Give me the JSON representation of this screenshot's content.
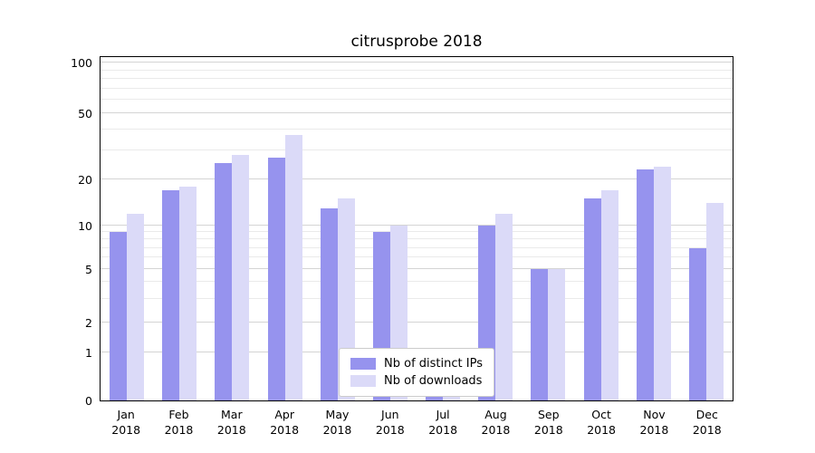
{
  "title": "citrusprobe 2018",
  "chart_data": {
    "type": "bar",
    "title": "citrusprobe 2018",
    "scale": "symlog",
    "categories": [
      "Jan",
      "Feb",
      "Mar",
      "Apr",
      "May",
      "Jun",
      "Jul",
      "Aug",
      "Sep",
      "Oct",
      "Nov",
      "Dec"
    ],
    "year_label": "2018",
    "series": [
      {
        "name": "Nb of distinct IPs",
        "color": "#9693ee",
        "values": [
          9,
          17,
          25,
          27,
          13,
          9,
          1,
          10,
          5,
          15,
          23,
          7
        ]
      },
      {
        "name": "Nb of downloads",
        "color": "#dbdaf8",
        "values": [
          12,
          18,
          28,
          37,
          15,
          10,
          1,
          12,
          5,
          17,
          24,
          14
        ]
      }
    ],
    "yticks": [
      0,
      1,
      2,
      5,
      10,
      20,
      50,
      100
    ],
    "minor_yticks": [
      3,
      4,
      6,
      7,
      8,
      9,
      30,
      40,
      60,
      70,
      80,
      90
    ],
    "ylim": [
      0,
      110
    ],
    "grid": true,
    "legend_position": "lower center"
  },
  "colors": {
    "major_grid": "#d4d4d4",
    "minor_grid": "#eaeaea",
    "axis": "#000000",
    "background": "#ffffff"
  }
}
